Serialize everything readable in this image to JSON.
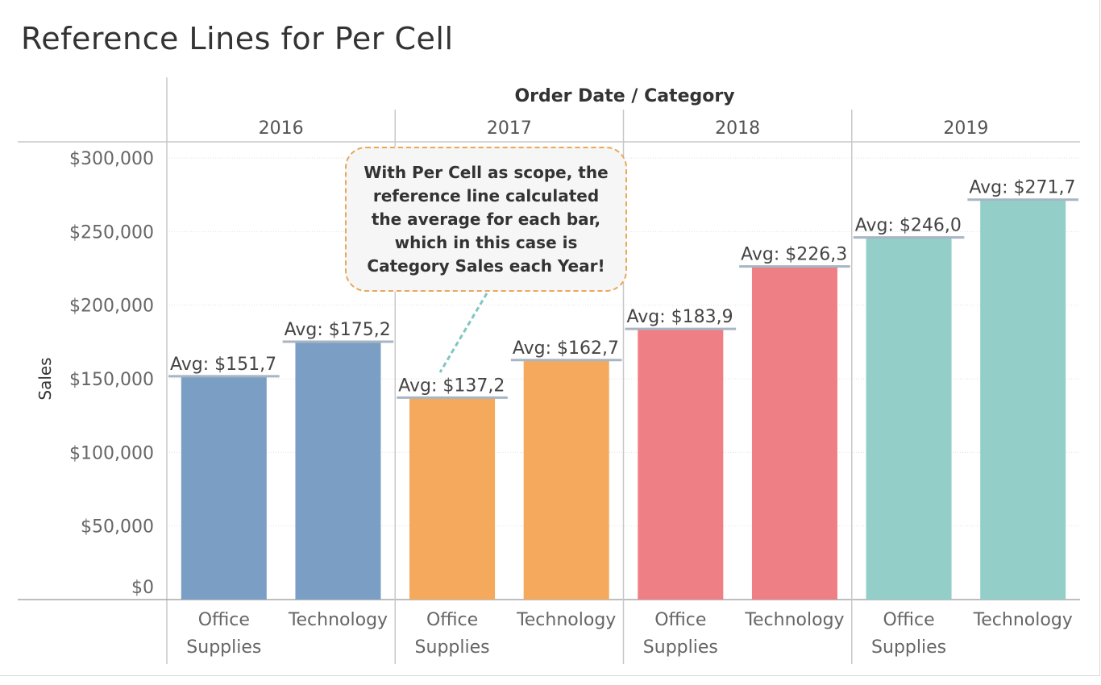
{
  "title": "Reference Lines for Per Cell",
  "annotation": "With Per Cell as scope, the reference line calculated the average for each bar, which in this case is Category Sales each Year!",
  "colors": {
    "2016": "#7b9fc4",
    "2017": "#f4a95c",
    "2018": "#ee7f85",
    "2019": "#93cfc8",
    "ref_line": "#a7b5c4",
    "callout_border": "#e8a85a",
    "connector": "#7fc7c2"
  },
  "chart_data": {
    "type": "bar",
    "header_label": "Order Date / Category",
    "ylabel": "Sales",
    "ylim": [
      0,
      300000
    ],
    "yticks": [
      {
        "value": 0,
        "label": "$0"
      },
      {
        "value": 50000,
        "label": "$50,000"
      },
      {
        "value": 100000,
        "label": "$100,000"
      },
      {
        "value": 150000,
        "label": "$150,000"
      },
      {
        "value": 200000,
        "label": "$200,000"
      },
      {
        "value": 250000,
        "label": "$250,000"
      },
      {
        "value": 300000,
        "label": "$300,000"
      }
    ],
    "groups": [
      {
        "year": "2016",
        "bars": [
          {
            "category": [
              "Office",
              "Supplies"
            ],
            "value": 151700,
            "label": "Avg: $151,7"
          },
          {
            "category": [
              "Technology"
            ],
            "value": 175200,
            "label": "Avg: $175,2"
          }
        ]
      },
      {
        "year": "2017",
        "bars": [
          {
            "category": [
              "Office",
              "Supplies"
            ],
            "value": 137200,
            "label": "Avg: $137,2"
          },
          {
            "category": [
              "Technology"
            ],
            "value": 162700,
            "label": "Avg: $162,7"
          }
        ]
      },
      {
        "year": "2018",
        "bars": [
          {
            "category": [
              "Office",
              "Supplies"
            ],
            "value": 183900,
            "label": "Avg: $183,9"
          },
          {
            "category": [
              "Technology"
            ],
            "value": 226300,
            "label": "Avg: $226,3"
          }
        ]
      },
      {
        "year": "2019",
        "bars": [
          {
            "category": [
              "Office",
              "Supplies"
            ],
            "value": 246000,
            "label": "Avg: $246,0"
          },
          {
            "category": [
              "Technology"
            ],
            "value": 271700,
            "label": "Avg: $271,7"
          }
        ]
      }
    ]
  }
}
